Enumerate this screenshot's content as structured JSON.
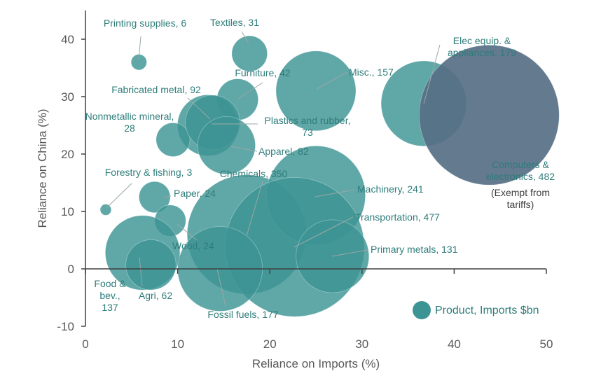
{
  "chart_data": {
    "type": "bubble",
    "xlabel": "Reliance on Imports (%)",
    "ylabel": "Reliance on China (%)",
    "xlim": [
      0,
      50
    ],
    "ylim": [
      -10,
      45
    ],
    "xticks": [
      0,
      10,
      20,
      30,
      40,
      50
    ],
    "yticks": [
      -10,
      0,
      10,
      20,
      30,
      40
    ],
    "grid": false,
    "legend": {
      "label": "Product, Imports $bn",
      "position": "bottom-right"
    },
    "colors": {
      "bubble": "#3d9494",
      "highlight": "#566f86",
      "axis": "#404040"
    },
    "points": [
      {
        "name": "Printing supplies",
        "x": 5.8,
        "y": 36,
        "size": 6,
        "label": "Printing supplies, 6"
      },
      {
        "name": "Textiles",
        "x": 17.8,
        "y": 37.5,
        "size": 31,
        "label": "Textiles, 31"
      },
      {
        "name": "Elec equip. & appliances",
        "x": 36.7,
        "y": 28.8,
        "size": 179,
        "label": [
          "Elec equip. &",
          "appliances, 179"
        ]
      },
      {
        "name": "Furniture",
        "x": 16.5,
        "y": 29.5,
        "size": 42,
        "label": "Furniture, 42"
      },
      {
        "name": "Misc.",
        "x": 25,
        "y": 31,
        "size": 157,
        "label": "Misc., 157"
      },
      {
        "name": "Fabricated metal",
        "x": 13.3,
        "y": 25,
        "size": 92,
        "label": "Fabricated metal, 92"
      },
      {
        "name": "Nonmetallic mineral",
        "x": 9.5,
        "y": 22.5,
        "size": 28,
        "label": [
          "Nonmetallic mineral,",
          "28"
        ]
      },
      {
        "name": "Plastics and rubber",
        "x": 13.8,
        "y": 25.5,
        "size": 73,
        "label": [
          "Plastics and rubber,",
          "73"
        ]
      },
      {
        "name": "Apparel",
        "x": 15.3,
        "y": 21.5,
        "size": 82,
        "label": "Apparel, 82"
      },
      {
        "name": "Computers & electronics",
        "x": 43.8,
        "y": 26.8,
        "size": 482,
        "label": [
          "Computers &",
          "electronics, 482"
        ],
        "note": [
          "(Exempt from",
          "tariffs)"
        ],
        "highlight": true
      },
      {
        "name": "Forestry & fishing",
        "x": 2.2,
        "y": 10.3,
        "size": 3,
        "label": "Forestry & fishing, 3"
      },
      {
        "name": "Chemicals",
        "x": 17.5,
        "y": 6,
        "size": 350,
        "label": "Chemicals, 350"
      },
      {
        "name": "Machinery",
        "x": 25,
        "y": 12.8,
        "size": 241,
        "label": "Machinery, 241"
      },
      {
        "name": "Paper",
        "x": 7.5,
        "y": 12.5,
        "size": 24,
        "label": "Paper, 24"
      },
      {
        "name": "Transportation",
        "x": 22.7,
        "y": 3.8,
        "size": 477,
        "label": "Transportation, 477"
      },
      {
        "name": "Wood",
        "x": 9.2,
        "y": 8.4,
        "size": 24,
        "label": "Wood, 24"
      },
      {
        "name": "Primary metals",
        "x": 26.8,
        "y": 2.2,
        "size": 131,
        "label": "Primary metals, 131"
      },
      {
        "name": "Food & bev.",
        "x": 6.2,
        "y": 2.8,
        "size": 137,
        "label": [
          "Food &",
          "bev.,",
          "137"
        ]
      },
      {
        "name": "Agri",
        "x": 7.1,
        "y": 0.7,
        "size": 62,
        "label": "Agri, 62"
      },
      {
        "name": "Fossil fuels",
        "x": 14.6,
        "y": 0,
        "size": 177,
        "label": "Fossil fuels, 177"
      }
    ]
  }
}
